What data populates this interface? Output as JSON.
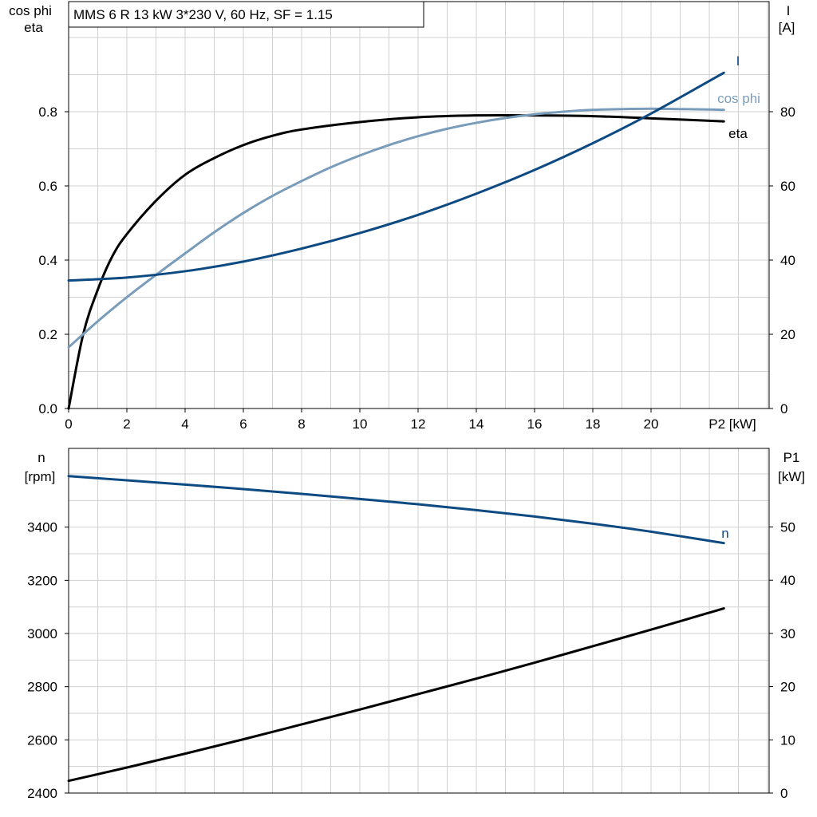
{
  "title": "MMS 6 R   13 kW   3*230 V, 60 Hz, SF = 1.15",
  "colors": {
    "dark_blue": "#0d4a82",
    "light_blue": "#7a9cbb",
    "black": "#000000",
    "grid": "#d0d0d0"
  },
  "chart_data": [
    {
      "type": "line",
      "xlabel": "P2 [kW]",
      "ylabel_left": [
        "cos phi",
        "eta"
      ],
      "ylabel_right": [
        "I",
        "[A]"
      ],
      "xlim": [
        0,
        24
      ],
      "ylim_left": [
        0,
        1.0
      ],
      "ylim_right": [
        0,
        100
      ],
      "x_ticks": [
        "0",
        "2",
        "4",
        "6",
        "8",
        "10",
        "12",
        "14",
        "16",
        "18",
        "20"
      ],
      "y_ticks_left": [
        "0.0",
        "0.2",
        "0.4",
        "0.6",
        "0.8"
      ],
      "y_ticks_right": [
        "0",
        "20",
        "40",
        "60",
        "80"
      ],
      "grid": true,
      "series": [
        {
          "name": "eta",
          "axis": "left",
          "color": "#000000",
          "x": [
            0,
            0.5,
            1,
            1.5,
            2,
            3,
            4,
            5,
            6,
            7,
            8,
            10,
            12,
            14,
            16,
            18,
            20,
            22.5
          ],
          "y": [
            0.0,
            0.2,
            0.32,
            0.41,
            0.47,
            0.56,
            0.63,
            0.675,
            0.71,
            0.735,
            0.752,
            0.772,
            0.785,
            0.79,
            0.79,
            0.788,
            0.782,
            0.774
          ]
        },
        {
          "name": "cos phi",
          "axis": "left",
          "color": "#7a9cbb",
          "x": [
            0,
            1,
            2,
            3,
            4,
            5,
            6,
            7,
            8,
            9,
            10,
            11,
            12,
            13,
            14,
            15,
            16,
            17,
            18,
            19,
            20,
            21,
            22,
            22.5
          ],
          "y": [
            0.165,
            0.235,
            0.3,
            0.36,
            0.418,
            0.475,
            0.527,
            0.573,
            0.613,
            0.65,
            0.682,
            0.71,
            0.734,
            0.754,
            0.77,
            0.783,
            0.793,
            0.8,
            0.805,
            0.807,
            0.808,
            0.807,
            0.806,
            0.805
          ]
        },
        {
          "name": "I",
          "axis": "right",
          "color": "#0d4a82",
          "x": [
            0,
            2,
            4,
            6,
            8,
            10,
            12,
            14,
            16,
            18,
            20,
            22.5
          ],
          "y": [
            34.5,
            35.3,
            37.0,
            39.6,
            43.1,
            47.3,
            52.2,
            57.9,
            64.3,
            71.5,
            79.5,
            90.5
          ]
        }
      ]
    },
    {
      "type": "line",
      "ylabel_left": [
        "n",
        "[rpm]"
      ],
      "ylabel_right": [
        "P1",
        "[kW]"
      ],
      "xlim": [
        0,
        24
      ],
      "ylim_left": [
        2400,
        3600
      ],
      "ylim_right": [
        0,
        60
      ],
      "y_ticks_left": [
        "2400",
        "2600",
        "2800",
        "3000",
        "3200",
        "3400"
      ],
      "y_ticks_right": [
        "0",
        "10",
        "20",
        "30",
        "40",
        "50"
      ],
      "grid": true,
      "series": [
        {
          "name": "n",
          "axis": "left",
          "color": "#0d4a82",
          "x": [
            0,
            2,
            4,
            6,
            8,
            10,
            12,
            14,
            16,
            18,
            20,
            22.5
          ],
          "y": [
            3592,
            3576,
            3560,
            3543,
            3525,
            3506,
            3486,
            3464,
            3440,
            3413,
            3383,
            3340
          ]
        },
        {
          "name": "",
          "axis": "right",
          "color": "#000000",
          "x": [
            0,
            2,
            4,
            6,
            8,
            10,
            12,
            14,
            16,
            18,
            20,
            22.5
          ],
          "y": [
            2.3,
            4.8,
            7.4,
            10.1,
            12.9,
            15.7,
            18.6,
            21.5,
            24.5,
            27.6,
            30.7,
            34.7
          ]
        }
      ]
    }
  ]
}
